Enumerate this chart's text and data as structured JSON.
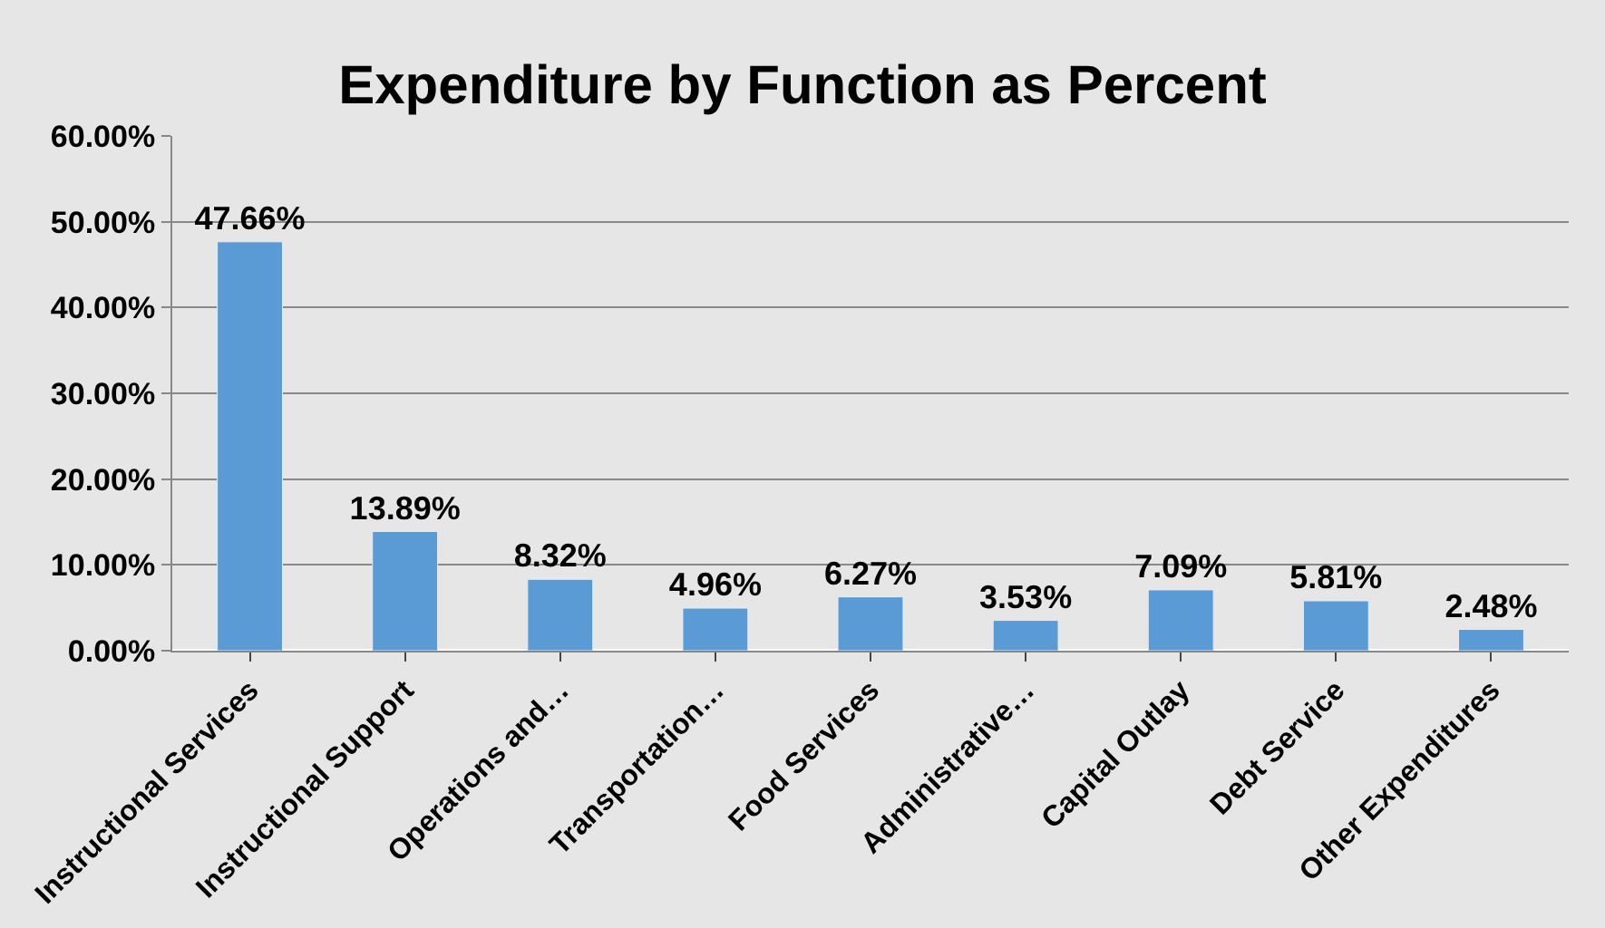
{
  "chart_data": {
    "type": "bar",
    "title": "Expenditure by Function as Percent",
    "categories": [
      "Instructional Services",
      "Instructional Support",
      "Operations and…",
      "Transportation…",
      "Food Services",
      "Administrative…",
      "Capital Outlay",
      "Debt Service",
      "Other Expenditures"
    ],
    "values": [
      47.66,
      13.89,
      8.32,
      4.96,
      6.27,
      3.53,
      7.09,
      5.81,
      2.48
    ],
    "value_labels": [
      "47.66%",
      "13.89%",
      "8.32%",
      "4.96%",
      "6.27%",
      "3.53%",
      "7.09%",
      "5.81%",
      "2.48%"
    ],
    "color": "#5b9bd5",
    "ylim": [
      0,
      60
    ],
    "yticks": [
      {
        "value": 0,
        "label": "0.00%"
      },
      {
        "value": 10,
        "label": "10.00%"
      },
      {
        "value": 20,
        "label": "20.00%"
      },
      {
        "value": 30,
        "label": "30.00%"
      },
      {
        "value": 40,
        "label": "40.00%"
      },
      {
        "value": 50,
        "label": "50.00%"
      },
      {
        "value": 60,
        "label": "60.00%"
      }
    ],
    "grid": "y"
  }
}
